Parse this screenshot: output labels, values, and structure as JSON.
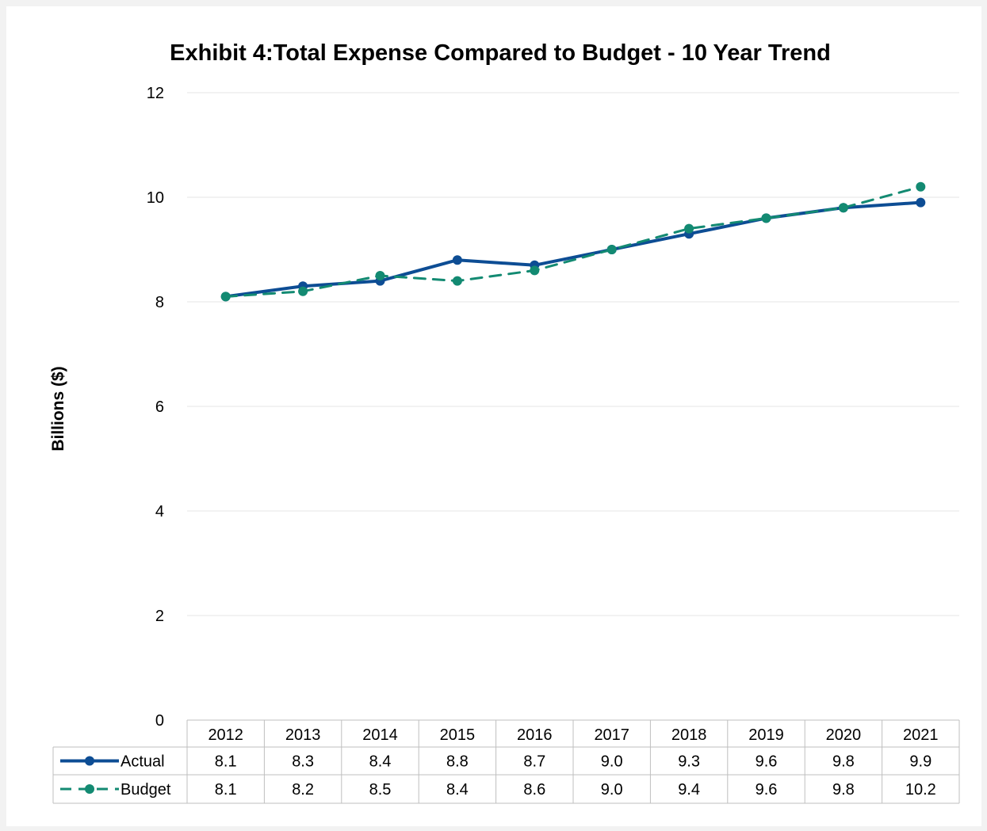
{
  "chart_data": {
    "type": "line",
    "title": "Exhibit 4:Total Expense Compared to Budget - 10 Year Trend",
    "ylabel": "Billions ($)",
    "xlabel": "",
    "ylim": [
      0,
      12
    ],
    "yticks": [
      0,
      2,
      4,
      6,
      8,
      10,
      12
    ],
    "grid": true,
    "legend": "data-table-left",
    "categories": [
      "2012",
      "2013",
      "2014",
      "2015",
      "2016",
      "2017",
      "2018",
      "2019",
      "2020",
      "2021"
    ],
    "series": [
      {
        "name": "Actual",
        "values": [
          8.1,
          8.3,
          8.4,
          8.8,
          8.7,
          9.0,
          9.3,
          9.6,
          9.8,
          9.9
        ],
        "labels": [
          "8.1",
          "8.3",
          "8.4",
          "8.8",
          "8.7",
          "9.0",
          "9.3",
          "9.6",
          "9.8",
          "9.9"
        ],
        "color": "#0d4d94",
        "style": "solid"
      },
      {
        "name": "Budget",
        "values": [
          8.1,
          8.2,
          8.5,
          8.4,
          8.6,
          9.0,
          9.4,
          9.6,
          9.8,
          10.2
        ],
        "labels": [
          "8.1",
          "8.2",
          "8.5",
          "8.4",
          "8.6",
          "9.0",
          "9.4",
          "9.6",
          "9.8",
          "10.2"
        ],
        "color": "#138a72",
        "style": "dashed"
      }
    ]
  }
}
